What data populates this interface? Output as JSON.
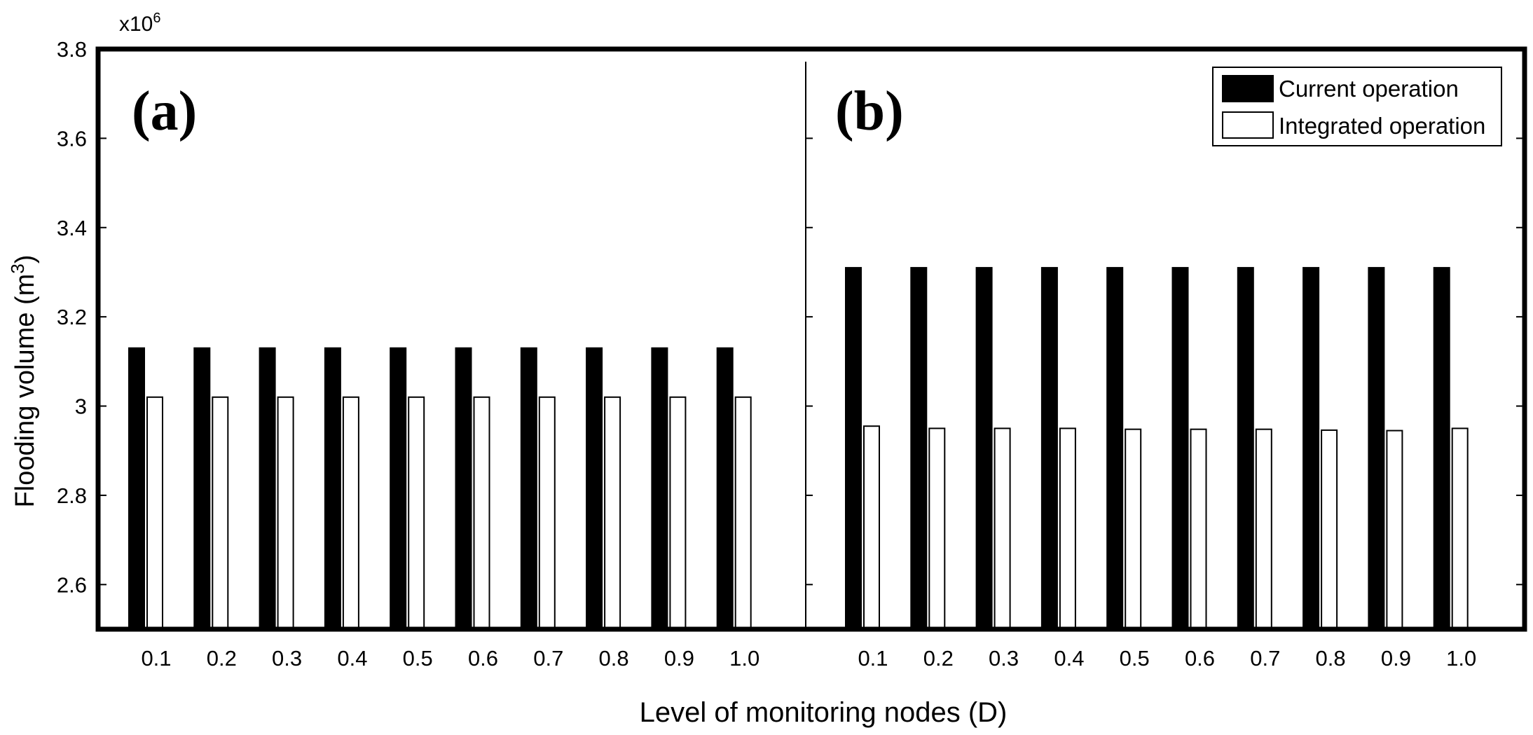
{
  "chart_data": {
    "type": "bar",
    "ylabel": "Flooding volume (m",
    "ylabel_sup": "3",
    "ylabel_close": ")",
    "xlabel": "Level of monitoring nodes (D)",
    "y_multiplier_base": "x10",
    "y_multiplier_exp": "6",
    "ylim": [
      2.5,
      3.8
    ],
    "yticks": [
      2.6,
      2.8,
      3,
      3.2,
      3.4,
      3.6,
      3.8
    ],
    "ytick_labels": [
      "2.6",
      "2.8",
      "3",
      "3.2",
      "3.4",
      "3.6",
      "3.8"
    ],
    "grid": false,
    "legend_position": "top-right",
    "colors": {
      "current": "#000000",
      "integrated": "#ffffff",
      "edge": "#000000"
    },
    "legend": [
      {
        "key": "current",
        "label": "Current operation"
      },
      {
        "key": "integrated",
        "label": "Integrated operation"
      }
    ],
    "panels": [
      {
        "label": "(a)",
        "categories": [
          "0.1",
          "0.2",
          "0.3",
          "0.4",
          "0.5",
          "0.6",
          "0.7",
          "0.8",
          "0.9",
          "1.0"
        ],
        "series": [
          {
            "key": "current",
            "name": "Current operation",
            "values": [
              3.13,
              3.13,
              3.13,
              3.13,
              3.13,
              3.13,
              3.13,
              3.13,
              3.13,
              3.13
            ]
          },
          {
            "key": "integrated",
            "name": "Integrated operation",
            "values": [
              3.02,
              3.02,
              3.02,
              3.02,
              3.02,
              3.02,
              3.02,
              3.02,
              3.02,
              3.02
            ]
          }
        ]
      },
      {
        "label": "(b)",
        "categories": [
          "0.1",
          "0.2",
          "0.3",
          "0.4",
          "0.5",
          "0.6",
          "0.7",
          "0.8",
          "0.9",
          "1.0"
        ],
        "series": [
          {
            "key": "current",
            "name": "Current operation",
            "values": [
              3.31,
              3.31,
              3.31,
              3.31,
              3.31,
              3.31,
              3.31,
              3.31,
              3.31,
              3.31
            ]
          },
          {
            "key": "integrated",
            "name": "Integrated operation",
            "values": [
              2.955,
              2.95,
              2.95,
              2.95,
              2.948,
              2.948,
              2.948,
              2.946,
              2.945,
              2.95
            ]
          }
        ]
      }
    ]
  }
}
